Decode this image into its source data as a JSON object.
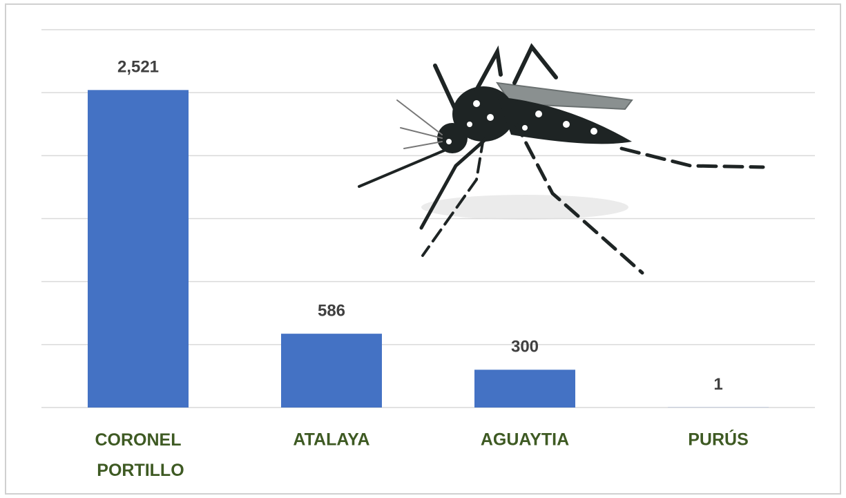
{
  "chart_data": {
    "type": "bar",
    "categories": [
      "CORONEL PORTILLO",
      "ATALAYA",
      "AGUAYTIA",
      "PURÚS"
    ],
    "values": [
      2521,
      586,
      300,
      1
    ],
    "value_labels": [
      "2,521",
      "586",
      "300",
      "1"
    ],
    "color": "#4472c4",
    "ylim": [
      0,
      3000
    ],
    "yticks": [
      0,
      500,
      1000,
      1500,
      2000,
      2500,
      3000
    ],
    "grid": true
  }
}
